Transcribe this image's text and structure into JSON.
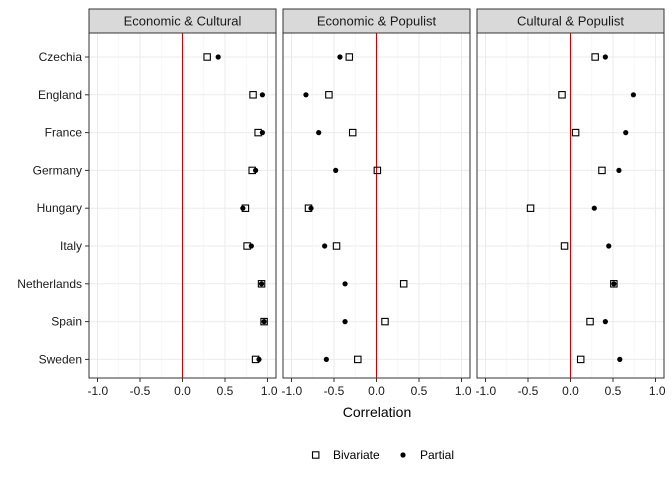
{
  "chart_data": {
    "type": "scatter",
    "xlabel": "Correlation",
    "xlim": [
      -1.1,
      1.1
    ],
    "x_ticks": [
      "-1.0",
      "-0.5",
      "0.0",
      "0.5",
      "1.0"
    ],
    "x_tick_values": [
      -1.0,
      -0.5,
      0.0,
      0.5,
      1.0
    ],
    "reference_line": {
      "x": 0,
      "color": "#cc0000"
    },
    "categories": [
      "Czechia",
      "England",
      "France",
      "Germany",
      "Hungary",
      "Italy",
      "Netherlands",
      "Spain",
      "Sweden"
    ],
    "grid": true,
    "legend_position": "bottom",
    "legend": [
      {
        "name": "Bivariate",
        "marker": "open-square"
      },
      {
        "name": "Partial",
        "marker": "filled-circle"
      }
    ],
    "panels": [
      {
        "title": "Economic & Cultural",
        "series": [
          {
            "name": "Bivariate",
            "values": [
              0.29,
              0.83,
              0.89,
              0.82,
              0.74,
              0.76,
              0.93,
              0.96,
              0.86
            ]
          },
          {
            "name": "Partial",
            "values": [
              0.42,
              0.94,
              0.94,
              0.86,
              0.71,
              0.81,
              0.93,
              0.96,
              0.9
            ]
          }
        ]
      },
      {
        "title": "Economic & Populist",
        "series": [
          {
            "name": "Bivariate",
            "values": [
              -0.32,
              -0.56,
              -0.28,
              0.01,
              -0.8,
              -0.47,
              0.32,
              0.1,
              -0.22
            ]
          },
          {
            "name": "Partial",
            "values": [
              -0.43,
              -0.83,
              -0.68,
              -0.48,
              -0.77,
              -0.61,
              -0.37,
              -0.37,
              -0.59
            ]
          }
        ]
      },
      {
        "title": "Cultural & Populist",
        "series": [
          {
            "name": "Bivariate",
            "values": [
              0.29,
              -0.1,
              0.06,
              0.37,
              -0.47,
              -0.07,
              0.51,
              0.23,
              0.12
            ]
          },
          {
            "name": "Partial",
            "values": [
              0.41,
              0.74,
              0.65,
              0.57,
              0.28,
              0.45,
              0.51,
              0.41,
              0.58
            ]
          }
        ]
      }
    ]
  }
}
